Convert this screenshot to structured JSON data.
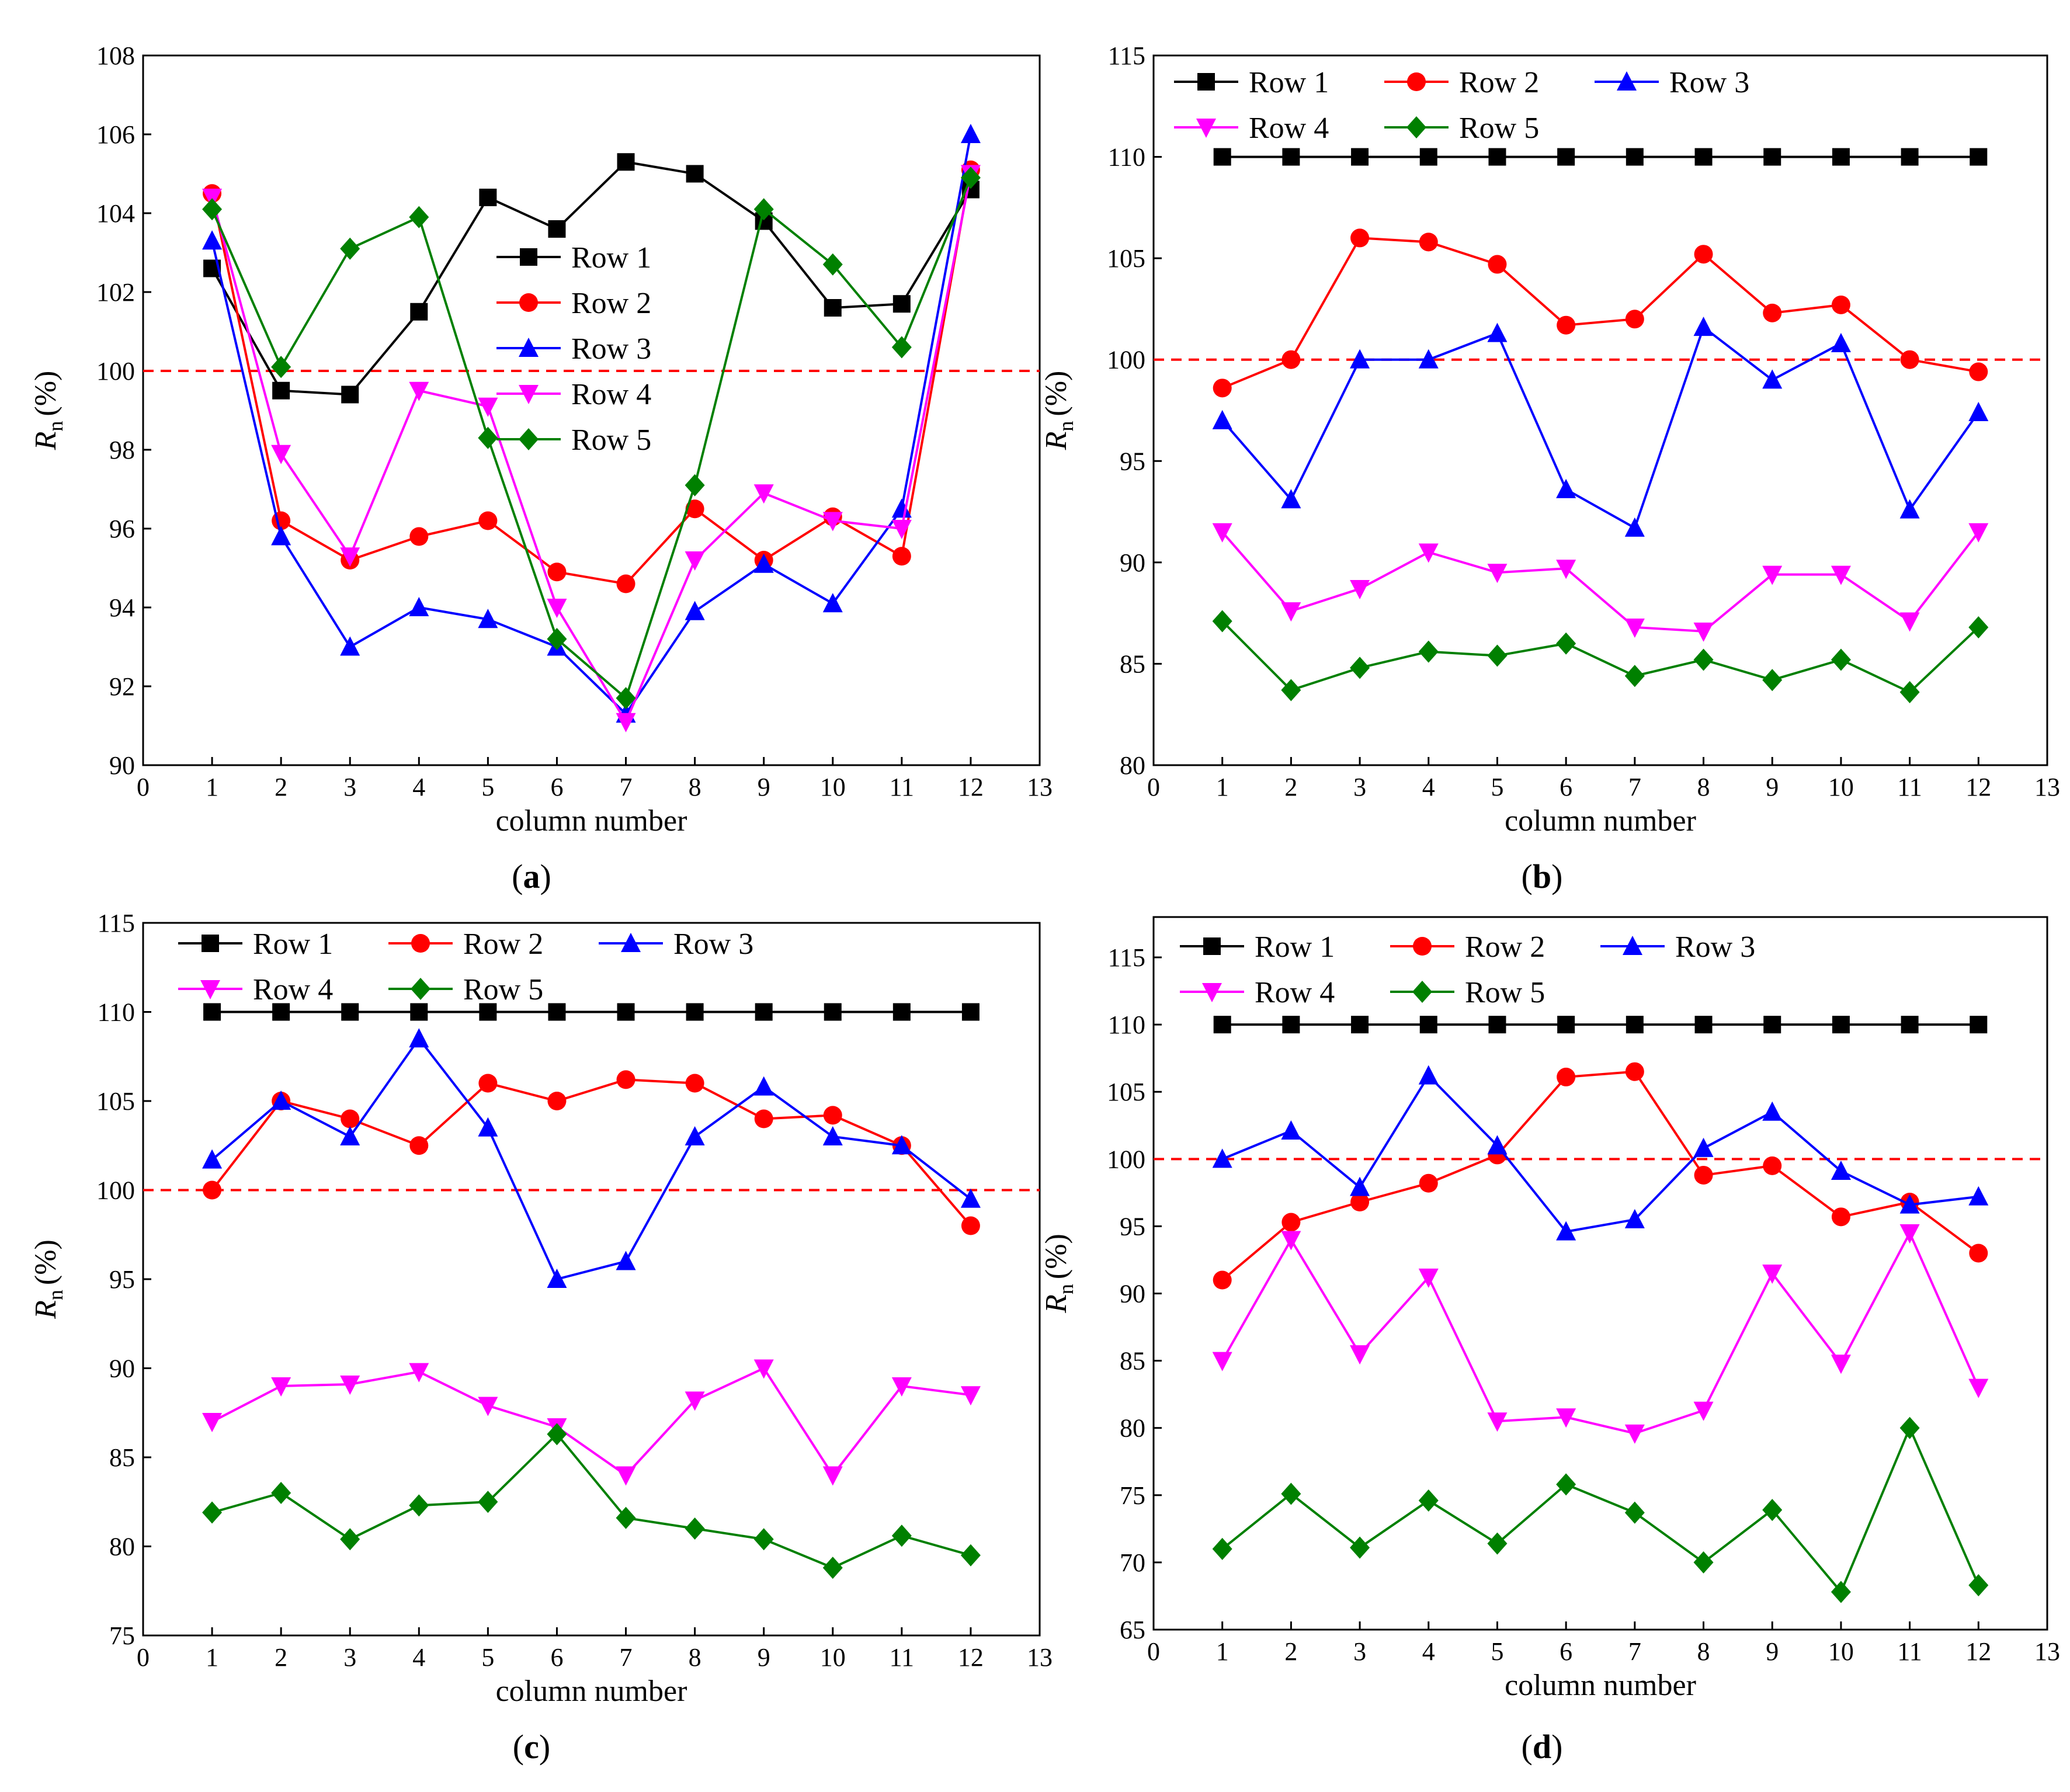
{
  "colors": {
    "row1": "#000000",
    "row2": "#ff0000",
    "row3": "#0000ff",
    "row4": "#ff00ff",
    "row5": "#008000",
    "reference": "#ff0000"
  },
  "chart_data": [
    {
      "id": "a",
      "type": "line",
      "caption_letter": "a",
      "xlabel": "column number",
      "ylabel_main": "R",
      "ylabel_sub": "n",
      "ylabel_unit": "(%)",
      "xlim": [
        0,
        13
      ],
      "ylim": [
        90,
        108
      ],
      "xticks": [
        0,
        1,
        2,
        3,
        4,
        5,
        6,
        7,
        8,
        9,
        10,
        11,
        12,
        13
      ],
      "yticks": [
        90,
        92,
        94,
        96,
        98,
        100,
        102,
        104,
        106,
        108
      ],
      "reference_line": 100,
      "legend_placement": "center",
      "x": [
        1,
        2,
        3,
        4,
        5,
        6,
        7,
        8,
        9,
        10,
        11,
        12
      ],
      "series": [
        {
          "name": "Row 1",
          "marker": "square",
          "values": [
            102.6,
            99.5,
            99.4,
            101.5,
            104.4,
            103.6,
            105.3,
            105.0,
            103.8,
            101.6,
            101.7,
            104.6
          ]
        },
        {
          "name": "Row 2",
          "marker": "circle",
          "values": [
            104.5,
            96.2,
            95.2,
            95.8,
            96.2,
            94.9,
            94.6,
            96.5,
            95.2,
            96.3,
            95.3,
            105.1
          ]
        },
        {
          "name": "Row 3",
          "marker": "triangle-up",
          "values": [
            103.3,
            95.8,
            93.0,
            94.0,
            93.7,
            93.0,
            91.3,
            93.9,
            95.1,
            94.1,
            96.5,
            106.0
          ]
        },
        {
          "name": "Row 4",
          "marker": "triangle-down",
          "values": [
            104.4,
            97.9,
            95.3,
            99.5,
            99.1,
            94.0,
            91.1,
            95.2,
            96.9,
            96.2,
            96.0,
            105.0
          ]
        },
        {
          "name": "Row 5",
          "marker": "diamond",
          "values": [
            104.1,
            100.1,
            103.1,
            103.9,
            98.3,
            93.2,
            91.7,
            97.1,
            104.1,
            102.7,
            100.6,
            104.9
          ]
        }
      ]
    },
    {
      "id": "b",
      "type": "line",
      "caption_letter": "b",
      "xlabel": "column number",
      "ylabel_main": "R",
      "ylabel_sub": "n",
      "ylabel_unit": "(%)",
      "xlim": [
        0,
        13
      ],
      "ylim": [
        80,
        115
      ],
      "xticks": [
        0,
        1,
        2,
        3,
        4,
        5,
        6,
        7,
        8,
        9,
        10,
        11,
        12,
        13
      ],
      "yticks": [
        80,
        85,
        90,
        95,
        100,
        105,
        110,
        115
      ],
      "reference_line": 100,
      "legend_placement": "top-left",
      "x": [
        1,
        2,
        3,
        4,
        5,
        6,
        7,
        8,
        9,
        10,
        11,
        12
      ],
      "series": [
        {
          "name": "Row 1",
          "marker": "square",
          "values": [
            110,
            110,
            110,
            110,
            110,
            110,
            110,
            110,
            110,
            110,
            110,
            110
          ]
        },
        {
          "name": "Row 2",
          "marker": "circle",
          "values": [
            98.6,
            100.0,
            106.0,
            105.8,
            104.7,
            101.7,
            102.0,
            105.2,
            102.3,
            102.7,
            100.0,
            99.4
          ]
        },
        {
          "name": "Row 3",
          "marker": "triangle-up",
          "values": [
            97.0,
            93.1,
            100.0,
            100.0,
            101.3,
            93.6,
            91.7,
            101.6,
            99.0,
            100.8,
            92.6,
            97.4
          ]
        },
        {
          "name": "Row 4",
          "marker": "triangle-down",
          "values": [
            91.5,
            87.6,
            88.7,
            90.5,
            89.5,
            89.7,
            86.8,
            86.6,
            89.4,
            89.4,
            87.1,
            91.5
          ]
        },
        {
          "name": "Row 5",
          "marker": "diamond",
          "values": [
            87.1,
            83.7,
            84.8,
            85.6,
            85.4,
            86.0,
            84.4,
            85.2,
            84.2,
            85.2,
            83.6,
            86.8
          ]
        }
      ]
    },
    {
      "id": "c",
      "type": "line",
      "caption_letter": "c",
      "xlabel": "column number",
      "ylabel_main": "R",
      "ylabel_sub": "n",
      "ylabel_unit": "(%)",
      "xlim": [
        0,
        13
      ],
      "ylim": [
        75,
        115
      ],
      "xticks": [
        0,
        1,
        2,
        3,
        4,
        5,
        6,
        7,
        8,
        9,
        10,
        11,
        12,
        13
      ],
      "yticks": [
        75,
        80,
        85,
        90,
        95,
        100,
        105,
        110,
        115
      ],
      "reference_line": 100,
      "legend_placement": "top-left",
      "x": [
        1,
        2,
        3,
        4,
        5,
        6,
        7,
        8,
        9,
        10,
        11,
        12
      ],
      "series": [
        {
          "name": "Row 1",
          "marker": "square",
          "values": [
            110,
            110,
            110,
            110,
            110,
            110,
            110,
            110,
            110,
            110,
            110,
            110
          ]
        },
        {
          "name": "Row 2",
          "marker": "circle",
          "values": [
            100.0,
            105.0,
            104.0,
            102.5,
            106.0,
            105.0,
            106.2,
            106.0,
            104.0,
            104.2,
            102.5,
            98.0
          ]
        },
        {
          "name": "Row 3",
          "marker": "triangle-up",
          "values": [
            101.7,
            105.0,
            103.0,
            108.5,
            103.5,
            95.0,
            96.0,
            103.0,
            105.8,
            103.0,
            102.5,
            99.5
          ]
        },
        {
          "name": "Row 4",
          "marker": "triangle-down",
          "values": [
            87.0,
            89.0,
            89.1,
            89.8,
            87.9,
            86.7,
            84.0,
            88.2,
            90.0,
            84.0,
            89.0,
            88.5
          ]
        },
        {
          "name": "Row 5",
          "marker": "diamond",
          "values": [
            81.9,
            83.0,
            80.4,
            82.3,
            82.5,
            86.3,
            81.6,
            81.0,
            80.4,
            78.8,
            80.6,
            79.5
          ]
        }
      ]
    },
    {
      "id": "d",
      "type": "line",
      "caption_letter": "d",
      "xlabel": "column number",
      "ylabel_main": "R",
      "ylabel_sub": "n",
      "ylabel_unit": "(%)",
      "xlim": [
        0,
        13
      ],
      "ylim": [
        65,
        118
      ],
      "xticks": [
        0,
        1,
        2,
        3,
        4,
        5,
        6,
        7,
        8,
        9,
        10,
        11,
        12,
        13
      ],
      "yticks": [
        65,
        70,
        75,
        80,
        85,
        90,
        95,
        100,
        105,
        110,
        115
      ],
      "reference_line": 100,
      "legend_placement": "top-left",
      "x": [
        1,
        2,
        3,
        4,
        5,
        6,
        7,
        8,
        9,
        10,
        11,
        12
      ],
      "series": [
        {
          "name": "Row 1",
          "marker": "square",
          "values": [
            110,
            110,
            110,
            110,
            110,
            110,
            110,
            110,
            110,
            110,
            110,
            110
          ]
        },
        {
          "name": "Row 2",
          "marker": "circle",
          "values": [
            91.0,
            95.3,
            96.8,
            98.2,
            100.3,
            106.1,
            106.5,
            98.8,
            99.5,
            95.7,
            96.8,
            93.0
          ]
        },
        {
          "name": "Row 3",
          "marker": "triangle-up",
          "values": [
            100.0,
            102.1,
            97.9,
            106.2,
            101.0,
            94.6,
            95.5,
            100.8,
            103.5,
            99.1,
            96.6,
            97.2
          ]
        },
        {
          "name": "Row 4",
          "marker": "triangle-down",
          "values": [
            85.0,
            94.0,
            85.5,
            91.2,
            80.5,
            80.8,
            79.6,
            81.3,
            91.5,
            84.8,
            94.5,
            83.0
          ]
        },
        {
          "name": "Row 5",
          "marker": "diamond",
          "values": [
            71.0,
            75.1,
            71.1,
            74.6,
            71.4,
            75.8,
            73.7,
            70.0,
            73.9,
            67.8,
            80.0,
            68.3
          ]
        }
      ]
    }
  ]
}
